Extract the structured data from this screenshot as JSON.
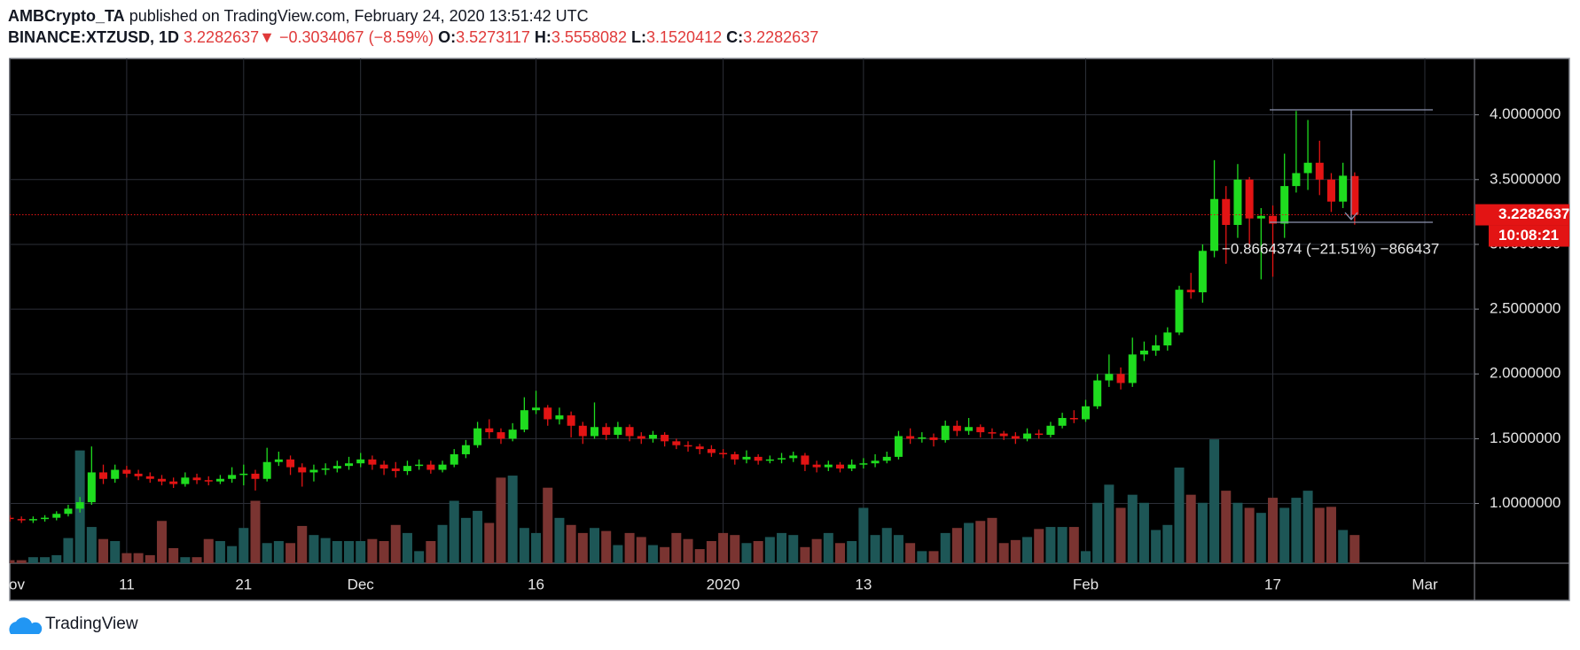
{
  "header": {
    "publisher": "AMBCrypto_TA",
    "published": "published on TradingView.com, February 24, 2020 13:51:42 UTC",
    "symbol": "BINANCE:XTZUSD, 1D",
    "last": "3.2282637",
    "arrow": "▼",
    "change": "−0.3034067 (−8.59%)",
    "ohlc": [
      {
        "label": "O:",
        "value": "3.5273117"
      },
      {
        "label": "H:",
        "value": "3.5558082"
      },
      {
        "label": "L:",
        "value": "3.1520412"
      },
      {
        "label": "C:",
        "value": "3.2282637"
      }
    ]
  },
  "chart_data": {
    "type": "candlestick",
    "categories": [
      "ov",
      null,
      null,
      null,
      null,
      null,
      null,
      null,
      null,
      null,
      "11",
      null,
      null,
      null,
      null,
      null,
      null,
      null,
      null,
      null,
      "21",
      null,
      null,
      null,
      null,
      null,
      null,
      null,
      null,
      null,
      "Dec",
      null,
      null,
      null,
      null,
      null,
      null,
      null,
      null,
      null,
      null,
      null,
      null,
      null,
      null,
      "16",
      null,
      null,
      null,
      null,
      null,
      null,
      null,
      null,
      null,
      null,
      null,
      null,
      null,
      null,
      null,
      "2020",
      null,
      null,
      null,
      null,
      null,
      null,
      null,
      null,
      null,
      null,
      null,
      "13",
      null,
      null,
      null,
      null,
      null,
      null,
      null,
      null,
      null,
      null,
      null,
      null,
      null,
      null,
      null,
      null,
      null,
      null,
      "Feb",
      null,
      null,
      null,
      null,
      null,
      null,
      null,
      null,
      null,
      null,
      null,
      null,
      null,
      null,
      null,
      "17",
      null,
      null,
      null,
      null,
      null,
      null,
      null,
      null,
      null,
      null,
      null,
      null,
      "Mar"
    ],
    "open": [
      0.89,
      0.88,
      0.87,
      0.88,
      0.89,
      0.92,
      0.96,
      1.01,
      1.24,
      1.19,
      1.26,
      1.23,
      1.21,
      1.19,
      1.17,
      1.15,
      1.2,
      1.18,
      1.17,
      1.19,
      1.22,
      1.23,
      1.19,
      1.32,
      1.34,
      1.28,
      1.24,
      1.26,
      1.27,
      1.29,
      1.31,
      1.34,
      1.3,
      1.27,
      1.25,
      1.29,
      1.3,
      1.26,
      1.3,
      1.38,
      1.45,
      1.58,
      1.55,
      1.5,
      1.57,
      1.72,
      1.74,
      1.65,
      1.68,
      1.6,
      1.52,
      1.59,
      1.53,
      1.59,
      1.52,
      1.5,
      1.53,
      1.48,
      1.45,
      1.44,
      1.42,
      1.39,
      1.38,
      1.34,
      1.36,
      1.33,
      1.34,
      1.35,
      1.37,
      1.3,
      1.28,
      1.3,
      1.27,
      1.3,
      1.31,
      1.33,
      1.36,
      1.52,
      1.5,
      1.51,
      1.49,
      1.6,
      1.56,
      1.59,
      1.55,
      1.54,
      1.52,
      1.5,
      1.54,
      1.53,
      1.6,
      1.66,
      1.65,
      1.75,
      1.95,
      2.0,
      1.93,
      2.15,
      2.18,
      2.22,
      2.32,
      2.65,
      2.63,
      2.95,
      3.35,
      3.15,
      3.5,
      3.2,
      3.22,
      3.16,
      3.45,
      3.55,
      3.63,
      3.5,
      3.33,
      3.5273117,
      null,
      null,
      null,
      null,
      null,
      null
    ],
    "high": [
      0.91,
      0.9,
      0.9,
      0.91,
      0.94,
      0.99,
      1.05,
      1.44,
      1.3,
      1.3,
      1.29,
      1.26,
      1.24,
      1.22,
      1.2,
      1.24,
      1.23,
      1.21,
      1.22,
      1.28,
      1.3,
      1.26,
      1.43,
      1.4,
      1.37,
      1.31,
      1.3,
      1.31,
      1.33,
      1.36,
      1.39,
      1.37,
      1.33,
      1.32,
      1.33,
      1.34,
      1.33,
      1.33,
      1.42,
      1.49,
      1.63,
      1.65,
      1.58,
      1.62,
      1.82,
      1.87,
      1.76,
      1.74,
      1.71,
      1.63,
      1.78,
      1.62,
      1.63,
      1.61,
      1.55,
      1.56,
      1.55,
      1.5,
      1.48,
      1.46,
      1.45,
      1.42,
      1.4,
      1.41,
      1.38,
      1.37,
      1.39,
      1.4,
      1.39,
      1.33,
      1.33,
      1.32,
      1.34,
      1.35,
      1.38,
      1.4,
      1.56,
      1.58,
      1.55,
      1.54,
      1.64,
      1.64,
      1.66,
      1.61,
      1.58,
      1.56,
      1.55,
      1.58,
      1.57,
      1.63,
      1.7,
      1.72,
      1.8,
      2.0,
      2.15,
      2.05,
      2.28,
      2.25,
      2.3,
      2.36,
      2.68,
      2.78,
      3.0,
      3.65,
      3.45,
      3.62,
      3.52,
      3.28,
      3.3,
      3.7,
      4.03,
      3.96,
      3.8,
      3.55,
      3.63,
      3.5558082,
      null,
      null,
      null,
      null,
      null,
      null
    ],
    "low": [
      0.86,
      0.85,
      0.85,
      0.86,
      0.87,
      0.9,
      0.93,
      0.99,
      1.15,
      1.16,
      1.2,
      1.18,
      1.16,
      1.14,
      1.12,
      1.13,
      1.15,
      1.14,
      1.15,
      1.16,
      1.14,
      1.1,
      1.17,
      1.29,
      1.22,
      1.13,
      1.17,
      1.22,
      1.24,
      1.26,
      1.28,
      1.26,
      1.22,
      1.2,
      1.22,
      1.26,
      1.23,
      1.24,
      1.28,
      1.35,
      1.43,
      1.5,
      1.46,
      1.48,
      1.55,
      1.69,
      1.6,
      1.61,
      1.51,
      1.46,
      1.5,
      1.49,
      1.5,
      1.48,
      1.46,
      1.47,
      1.44,
      1.42,
      1.4,
      1.38,
      1.36,
      1.35,
      1.3,
      1.31,
      1.3,
      1.31,
      1.31,
      1.32,
      1.25,
      1.24,
      1.25,
      1.24,
      1.25,
      1.27,
      1.28,
      1.31,
      1.34,
      1.46,
      1.47,
      1.44,
      1.47,
      1.52,
      1.53,
      1.51,
      1.5,
      1.49,
      1.46,
      1.48,
      1.5,
      1.51,
      1.58,
      1.62,
      1.63,
      1.73,
      1.9,
      1.88,
      1.9,
      2.1,
      2.14,
      2.18,
      2.3,
      2.58,
      2.55,
      2.9,
      2.85,
      3.05,
      2.98,
      2.73,
      2.75,
      3.05,
      3.4,
      3.42,
      3.38,
      3.25,
      3.28,
      3.1520412,
      null,
      null,
      null,
      null,
      null,
      null
    ],
    "close": [
      0.88,
      0.87,
      0.88,
      0.89,
      0.92,
      0.96,
      1.01,
      1.24,
      1.19,
      1.26,
      1.23,
      1.21,
      1.19,
      1.17,
      1.15,
      1.2,
      1.18,
      1.17,
      1.19,
      1.22,
      1.23,
      1.19,
      1.32,
      1.34,
      1.28,
      1.24,
      1.26,
      1.27,
      1.29,
      1.31,
      1.34,
      1.3,
      1.27,
      1.25,
      1.29,
      1.3,
      1.26,
      1.3,
      1.38,
      1.45,
      1.58,
      1.55,
      1.5,
      1.57,
      1.72,
      1.74,
      1.65,
      1.68,
      1.6,
      1.52,
      1.59,
      1.53,
      1.59,
      1.52,
      1.5,
      1.53,
      1.48,
      1.45,
      1.44,
      1.42,
      1.39,
      1.38,
      1.34,
      1.36,
      1.33,
      1.34,
      1.35,
      1.37,
      1.3,
      1.28,
      1.3,
      1.27,
      1.3,
      1.31,
      1.33,
      1.36,
      1.52,
      1.5,
      1.51,
      1.49,
      1.6,
      1.56,
      1.59,
      1.55,
      1.54,
      1.52,
      1.5,
      1.54,
      1.53,
      1.6,
      1.66,
      1.65,
      1.75,
      1.95,
      2.0,
      1.93,
      2.15,
      2.18,
      2.22,
      2.32,
      2.65,
      2.63,
      2.95,
      3.35,
      3.15,
      3.5,
      3.2,
      3.22,
      3.16,
      3.45,
      3.55,
      3.63,
      3.5,
      3.33,
      3.53,
      3.2282637,
      null,
      null,
      null,
      null,
      null,
      null
    ],
    "volume": [
      3,
      3,
      6,
      6,
      8,
      25,
      112,
      36,
      24,
      22,
      10,
      10,
      8,
      42,
      15,
      6,
      6,
      24,
      22,
      17,
      35,
      62,
      20,
      22,
      20,
      37,
      28,
      25,
      22,
      22,
      22,
      24,
      22,
      38,
      30,
      12,
      22,
      38,
      62,
      45,
      52,
      40,
      85,
      87,
      35,
      30,
      75,
      45,
      38,
      30,
      35,
      32,
      18,
      30,
      26,
      18,
      16,
      30,
      24,
      14,
      22,
      30,
      28,
      20,
      22,
      26,
      30,
      28,
      16,
      24,
      30,
      20,
      22,
      55,
      28,
      35,
      28,
      20,
      12,
      12,
      30,
      35,
      40,
      42,
      45,
      20,
      23,
      26,
      34,
      36,
      36,
      36,
      12,
      60,
      78,
      55,
      68,
      60,
      33,
      38,
      95,
      68,
      60,
      123,
      72,
      60,
      55,
      50,
      65,
      55,
      65,
      72,
      55,
      56,
      33,
      28,
      null,
      null,
      null,
      null,
      null,
      null
    ],
    "ylim": [
      0.539,
      4.435
    ],
    "yticks": [
      {
        "value": 1,
        "label": "1.0000000"
      },
      {
        "value": 1.5,
        "label": "1.5000000"
      },
      {
        "value": 2,
        "label": "2.0000000"
      },
      {
        "value": 2.5,
        "label": "2.5000000"
      },
      {
        "value": 3,
        "label": "3.0000000"
      },
      {
        "value": 3.5,
        "label": "3.5000000"
      },
      {
        "value": 4,
        "label": "4.0000000"
      }
    ],
    "vlim": [
      0,
      175
    ],
    "grid": true,
    "up_color": "#1fdc1f",
    "down_color": "#e31414",
    "up_volume_color": "#1d5656",
    "down_volume_color": "#7a3431",
    "last_price": 3.2282637,
    "countdown": "10:08:21",
    "measure": "−0.8664374 (−21.51%) −866437"
  },
  "footer": {
    "brand": "TradingView"
  }
}
